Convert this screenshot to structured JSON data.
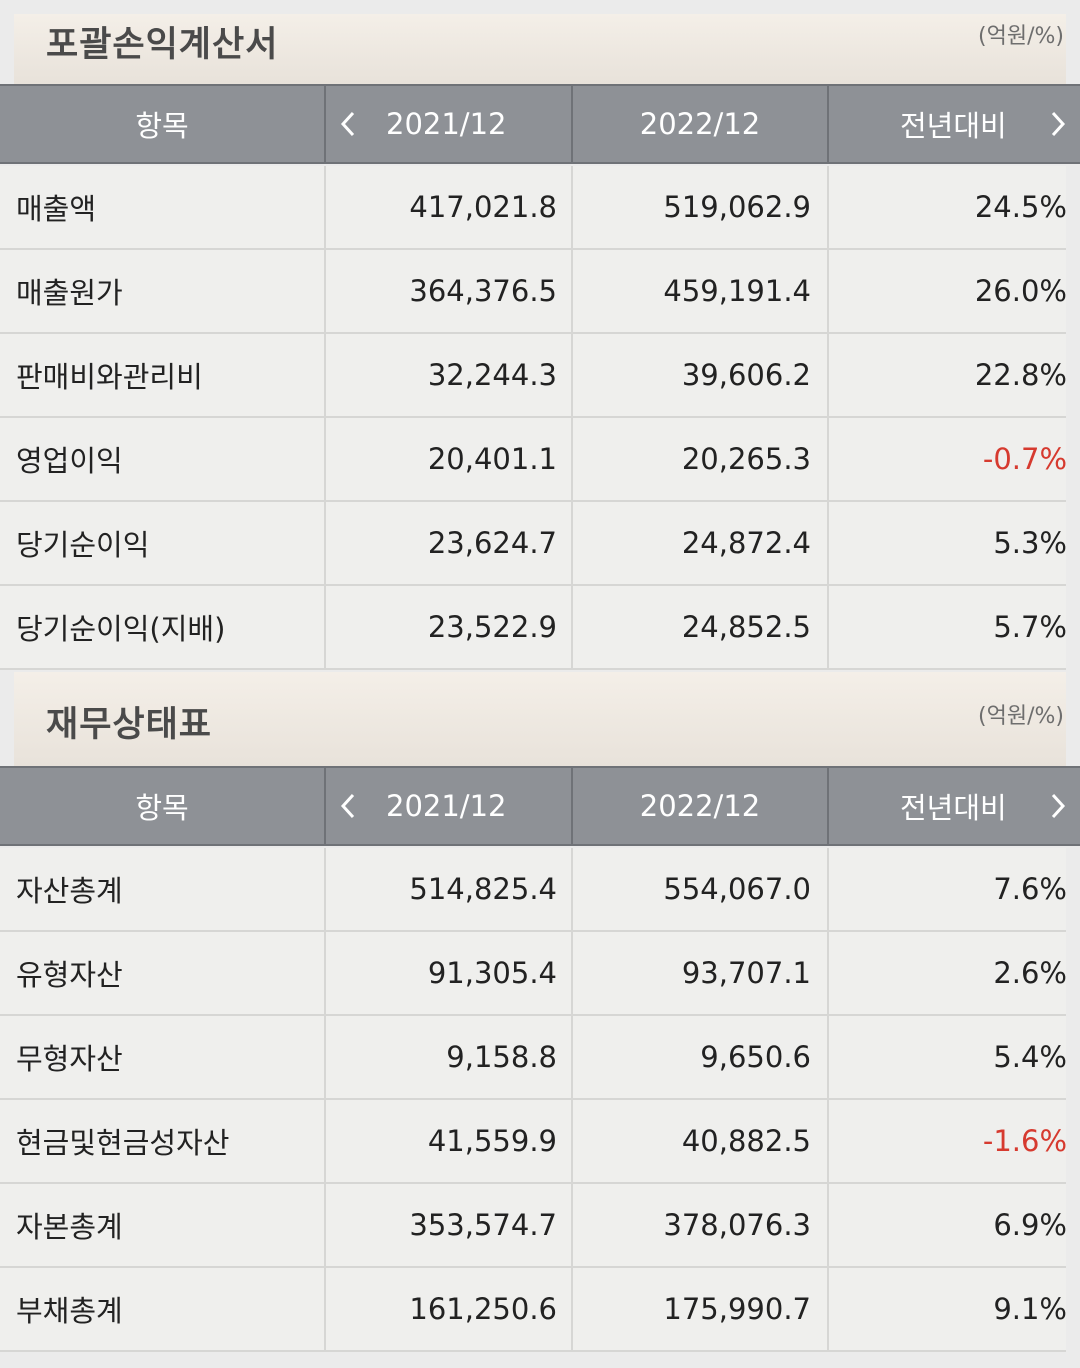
{
  "income": {
    "title": "포괄손익계산서",
    "unit": "(억원/%)",
    "headers": {
      "item": "항목",
      "year1": "2021/12",
      "year2": "2022/12",
      "yoy": "전년대비"
    },
    "rows": [
      {
        "label": "매출액",
        "v1": "417,021.8",
        "v2": "519,062.9",
        "yoy": "24.5%",
        "neg": false
      },
      {
        "label": "매출원가",
        "v1": "364,376.5",
        "v2": "459,191.4",
        "yoy": "26.0%",
        "neg": false
      },
      {
        "label": "판매비와관리비",
        "v1": "32,244.3",
        "v2": "39,606.2",
        "yoy": "22.8%",
        "neg": false
      },
      {
        "label": "영업이익",
        "v1": "20,401.1",
        "v2": "20,265.3",
        "yoy": "-0.7%",
        "neg": true
      },
      {
        "label": "당기순이익",
        "v1": "23,624.7",
        "v2": "24,872.4",
        "yoy": "5.3%",
        "neg": false
      },
      {
        "label": "당기순이익(지배)",
        "v1": "23,522.9",
        "v2": "24,852.5",
        "yoy": "5.7%",
        "neg": false
      }
    ]
  },
  "balance": {
    "title": "재무상태표",
    "unit": "(억원/%)",
    "headers": {
      "item": "항목",
      "year1": "2021/12",
      "year2": "2022/12",
      "yoy": "전년대비"
    },
    "rows": [
      {
        "label": "자산총계",
        "v1": "514,825.4",
        "v2": "554,067.0",
        "yoy": "7.6%",
        "neg": false
      },
      {
        "label": "유형자산",
        "v1": "91,305.4",
        "v2": "93,707.1",
        "yoy": "2.6%",
        "neg": false
      },
      {
        "label": "무형자산",
        "v1": "9,158.8",
        "v2": "9,650.6",
        "yoy": "5.4%",
        "neg": false
      },
      {
        "label": "현금및현금성자산",
        "v1": "41,559.9",
        "v2": "40,882.5",
        "yoy": "-1.6%",
        "neg": true
      },
      {
        "label": "자본총계",
        "v1": "353,574.7",
        "v2": "378,076.3",
        "yoy": "6.9%",
        "neg": false
      },
      {
        "label": "부채총계",
        "v1": "161,250.6",
        "v2": "175,990.7",
        "yoy": "9.1%",
        "neg": false
      }
    ]
  },
  "colors": {
    "header_bg": "#8e9196",
    "row_bg": "#efefed",
    "negative": "#d63a2f",
    "text": "#222222"
  },
  "icons": {
    "prev": "chevron-left-icon",
    "next": "chevron-right-icon"
  }
}
